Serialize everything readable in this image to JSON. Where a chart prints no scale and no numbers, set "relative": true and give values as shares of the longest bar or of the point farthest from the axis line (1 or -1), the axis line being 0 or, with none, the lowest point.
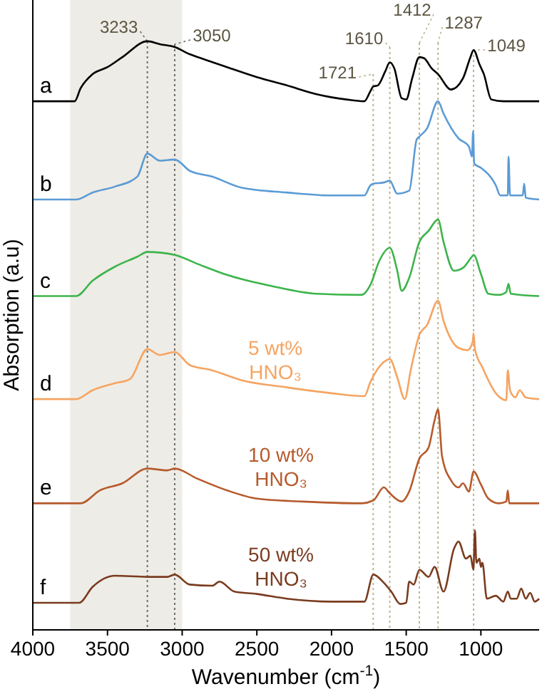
{
  "chart_data": {
    "type": "line",
    "relative": true,
    "xlabel": "Wavenumber (cm$^{-1}$)",
    "ylabel": "Absorption (a.u)",
    "xlim": [
      4000,
      610
    ],
    "xticks": [
      4000,
      3500,
      3000,
      2500,
      2000,
      1500,
      1000
    ],
    "grid": false,
    "line_style": "solid",
    "marker": "none",
    "series": [
      {
        "name": "a",
        "color": "#000000",
        "x": [
          4000,
          3720,
          3680,
          3600,
          3500,
          3400,
          3233,
          3150,
          3050,
          2950,
          2850,
          2700,
          2500,
          2300,
          2100,
          1900,
          1780,
          1740,
          1721,
          1690,
          1640,
          1610,
          1580,
          1530,
          1500,
          1460,
          1412,
          1380,
          1330,
          1287,
          1200,
          1120,
          1070,
          1049,
          1010,
          980,
          930,
          850,
          610
        ],
        "values": [
          0.898,
          0.898,
          0.92,
          0.944,
          0.956,
          0.973,
          1.0,
          0.995,
          0.99,
          0.978,
          0.969,
          0.956,
          0.939,
          0.925,
          0.91,
          0.901,
          0.898,
          0.915,
          0.923,
          0.925,
          0.949,
          0.964,
          0.954,
          0.903,
          0.901,
          0.937,
          0.973,
          0.971,
          0.954,
          0.944,
          0.918,
          0.937,
          0.973,
          0.985,
          0.961,
          0.944,
          0.901,
          0.898,
          0.898
        ]
      },
      {
        "name": "b",
        "color": "#5b9bd5",
        "x": [
          4000,
          3710,
          3600,
          3450,
          3300,
          3233,
          3150,
          3050,
          2950,
          2800,
          2600,
          2300,
          2000,
          1780,
          1740,
          1721,
          1650,
          1610,
          1560,
          1480,
          1430,
          1412,
          1360,
          1287,
          1250,
          1150,
          1080,
          1060,
          1052,
          1045,
          1000,
          900,
          870,
          820,
          815,
          805,
          720,
          710,
          700,
          610
        ],
        "values": [
          0.731,
          0.731,
          0.743,
          0.753,
          0.77,
          0.809,
          0.797,
          0.799,
          0.78,
          0.77,
          0.751,
          0.743,
          0.738,
          0.738,
          0.755,
          0.758,
          0.76,
          0.763,
          0.741,
          0.746,
          0.833,
          0.838,
          0.852,
          0.898,
          0.877,
          0.835,
          0.821,
          0.804,
          0.847,
          0.792,
          0.785,
          0.755,
          0.738,
          0.738,
          0.804,
          0.738,
          0.738,
          0.758,
          0.734,
          0.731
        ]
      },
      {
        "name": "c",
        "color": "#3cb44b",
        "x": [
          4000,
          3710,
          3600,
          3450,
          3300,
          3233,
          3050,
          2900,
          2700,
          2400,
          2100,
          1800,
          1740,
          1680,
          1610,
          1560,
          1530,
          1480,
          1412,
          1350,
          1287,
          1250,
          1180,
          1120,
          1060,
          1049,
          1000,
          950,
          880,
          830,
          815,
          800,
          610
        ],
        "values": [
          0.567,
          0.567,
          0.593,
          0.617,
          0.634,
          0.642,
          0.637,
          0.622,
          0.603,
          0.584,
          0.571,
          0.569,
          0.586,
          0.627,
          0.649,
          0.61,
          0.576,
          0.598,
          0.659,
          0.678,
          0.697,
          0.659,
          0.61,
          0.615,
          0.634,
          0.637,
          0.605,
          0.571,
          0.569,
          0.574,
          0.588,
          0.571,
          0.567
        ]
      },
      {
        "name": "d",
        "color": "#f5a462",
        "x": [
          4000,
          3710,
          3600,
          3450,
          3350,
          3233,
          3150,
          3050,
          2950,
          2800,
          2600,
          2300,
          2000,
          1780,
          1740,
          1650,
          1610,
          1560,
          1510,
          1470,
          1412,
          1360,
          1287,
          1250,
          1150,
          1090,
          1055,
          1049,
          1040,
          990,
          900,
          830,
          820,
          805,
          770,
          740,
          700,
          610
        ],
        "values": [
          0.392,
          0.392,
          0.407,
          0.419,
          0.426,
          0.477,
          0.467,
          0.472,
          0.45,
          0.441,
          0.424,
          0.412,
          0.402,
          0.397,
          0.421,
          0.455,
          0.46,
          0.429,
          0.392,
          0.441,
          0.501,
          0.518,
          0.559,
          0.525,
          0.479,
          0.475,
          0.489,
          0.504,
          0.477,
          0.446,
          0.402,
          0.39,
          0.441,
          0.407,
          0.395,
          0.407,
          0.395,
          0.392
        ]
      },
      {
        "name": "e",
        "color": "#b65a2c",
        "x": [
          4000,
          3680,
          3550,
          3400,
          3233,
          3100,
          3050,
          2900,
          2700,
          2500,
          2200,
          1800,
          1720,
          1650,
          1610,
          1530,
          1480,
          1412,
          1350,
          1310,
          1287,
          1260,
          1200,
          1150,
          1120,
          1080,
          1049,
          1000,
          950,
          880,
          830,
          820,
          810,
          610
        ],
        "values": [
          0.215,
          0.215,
          0.237,
          0.249,
          0.274,
          0.271,
          0.274,
          0.257,
          0.237,
          0.223,
          0.218,
          0.215,
          0.22,
          0.242,
          0.232,
          0.218,
          0.235,
          0.291,
          0.31,
          0.356,
          0.375,
          0.295,
          0.254,
          0.242,
          0.249,
          0.235,
          0.269,
          0.247,
          0.223,
          0.215,
          0.218,
          0.237,
          0.215,
          0.215
        ]
      },
      {
        "name": "f",
        "color": "#7a3b1f",
        "x": [
          4000,
          3690,
          3600,
          3450,
          3233,
          3100,
          3050,
          2950,
          2800,
          2750,
          2650,
          2500,
          2300,
          2000,
          1780,
          1720,
          1650,
          1600,
          1540,
          1500,
          1480,
          1450,
          1412,
          1350,
          1310,
          1250,
          1180,
          1150,
          1100,
          1070,
          1050,
          1040,
          1030,
          1010,
          1000,
          990,
          960,
          900,
          850,
          820,
          800,
          760,
          730,
          700,
          670,
          640,
          610
        ],
        "values": [
          0.046,
          0.046,
          0.073,
          0.092,
          0.09,
          0.09,
          0.094,
          0.077,
          0.075,
          0.082,
          0.065,
          0.061,
          0.053,
          0.048,
          0.048,
          0.094,
          0.08,
          0.065,
          0.044,
          0.046,
          0.082,
          0.077,
          0.102,
          0.09,
          0.107,
          0.065,
          0.138,
          0.15,
          0.121,
          0.126,
          0.102,
          0.169,
          0.114,
          0.121,
          0.107,
          0.114,
          0.053,
          0.058,
          0.048,
          0.065,
          0.053,
          0.053,
          0.07,
          0.053,
          0.063,
          0.048,
          0.053
        ]
      }
    ],
    "bands": [
      {
        "axis": "x",
        "from": 3750,
        "to": 3000,
        "color": "#eeece6"
      }
    ],
    "ref_lines": [
      {
        "axis": "x",
        "value": 3233,
        "label": "3233",
        "color": "#6e6e6e",
        "line_style": "dotted"
      },
      {
        "axis": "x",
        "value": 3050,
        "label": "3050",
        "color": "#6e6e6e",
        "line_style": "dotted"
      },
      {
        "axis": "x",
        "value": 1721,
        "label": "1721",
        "color": "#bdb48c",
        "line_style": "dotted"
      },
      {
        "axis": "x",
        "value": 1610,
        "label": "1610",
        "color": "#bdb48c",
        "line_style": "dotted"
      },
      {
        "axis": "x",
        "value": 1412,
        "label": "1412",
        "color": "#bdb48c",
        "line_style": "dotted"
      },
      {
        "axis": "x",
        "value": 1287,
        "label": "1287",
        "color": "#bdb48c",
        "line_style": "dotted"
      },
      {
        "axis": "x",
        "value": 1049,
        "label": "1049",
        "color": "#bdb48c",
        "line_style": "dotted"
      }
    ],
    "annotations": [
      "5 wt% HNO₃",
      "10 wt% HNO₃",
      "50 wt% HNO₃"
    ]
  }
}
